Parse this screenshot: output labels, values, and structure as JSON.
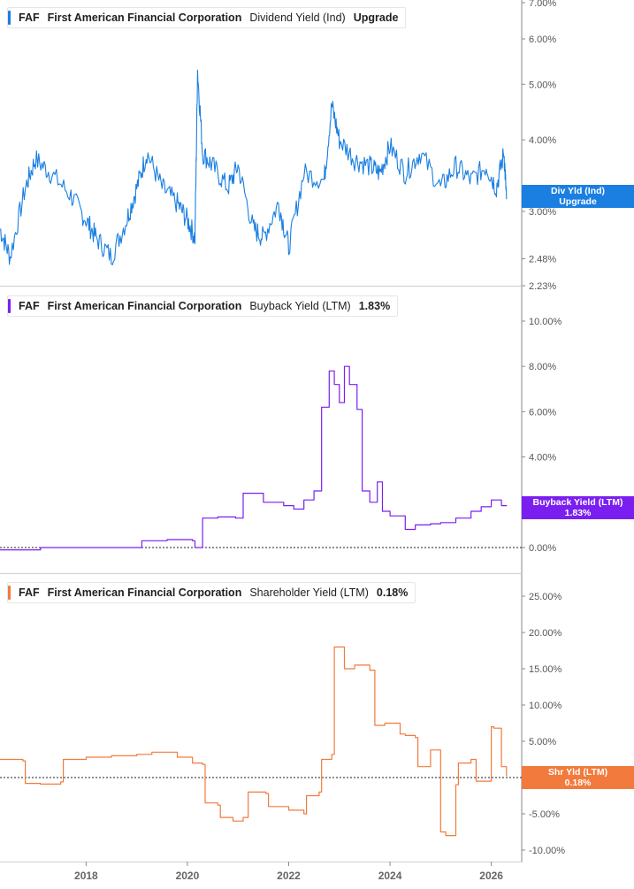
{
  "colors": {
    "panel1": "#1a7fe0",
    "panel2": "#7a1ff0",
    "panel3": "#f27a3c",
    "axis": "#8a8a8a",
    "grid_line": "#222222"
  },
  "x_axis": {
    "labels": [
      "2018",
      "2020",
      "2022",
      "2024",
      "2026"
    ],
    "range": [
      2016.3,
      2026.6
    ]
  },
  "panels": [
    {
      "legend": {
        "ticker": "FAF",
        "company": "First American Financial Corporation",
        "metric": "Dividend Yield (Ind)",
        "value": "Upgrade"
      },
      "tag": {
        "line1": "Div Yld (Ind)",
        "line2": "Upgrade"
      },
      "y_ticks": [
        "7.00%",
        "6.00%",
        "5.00%",
        "4.00%",
        "3.00%",
        "2.48%",
        "2.23%"
      ]
    },
    {
      "legend": {
        "ticker": "FAF",
        "company": "First American Financial Corporation",
        "metric": "Buyback Yield (LTM)",
        "value": "1.83%"
      },
      "tag": {
        "line1": "Buyback Yield (LTM)",
        "line2": "1.83%"
      },
      "y_ticks": [
        "10.00%",
        "8.00%",
        "6.00%",
        "4.00%",
        "0.00%"
      ]
    },
    {
      "legend": {
        "ticker": "FAF",
        "company": "First American Financial Corporation",
        "metric": "Shareholder Yield (LTM)",
        "value": "0.18%"
      },
      "tag": {
        "line1": "Shr Yld (LTM)",
        "line2": "0.18%"
      },
      "y_ticks": [
        "25.00%",
        "20.00%",
        "15.00%",
        "10.00%",
        "5.00%",
        "0.00%",
        "-5.00%",
        "-10.00%"
      ]
    }
  ],
  "chart_data": [
    {
      "type": "line",
      "title": "FAF First American Financial Corporation Dividend Yield (Ind)",
      "y_scale": "log",
      "ylim": [
        2.23,
        7.0
      ],
      "x": [
        2016.3,
        2016.5,
        2016.8,
        2017.0,
        2017.3,
        2017.7,
        2018.0,
        2018.2,
        2018.5,
        2018.8,
        2019.0,
        2019.2,
        2019.5,
        2019.8,
        2020.0,
        2020.15,
        2020.2,
        2020.3,
        2020.5,
        2020.8,
        2021.0,
        2021.3,
        2021.5,
        2021.8,
        2022.0,
        2022.3,
        2022.7,
        2022.85,
        2023.0,
        2023.3,
        2023.6,
        2023.8,
        2024.0,
        2024.3,
        2024.6,
        2025.0,
        2025.3,
        2025.6,
        2025.9,
        2026.1,
        2026.25,
        2026.3
      ],
      "series": [
        {
          "name": "Dividend Yield (Ind)",
          "values": [
            2.8,
            2.5,
            3.3,
            3.7,
            3.5,
            3.2,
            2.9,
            2.7,
            2.5,
            2.9,
            3.3,
            3.8,
            3.3,
            3.1,
            2.9,
            2.7,
            5.3,
            3.8,
            3.6,
            3.3,
            3.6,
            2.8,
            2.7,
            3.1,
            2.6,
            3.5,
            3.4,
            4.6,
            4.0,
            3.7,
            3.6,
            3.5,
            3.9,
            3.5,
            3.8,
            3.3,
            3.6,
            3.4,
            3.6,
            3.3,
            3.8,
            3.15
          ]
        }
      ]
    },
    {
      "type": "line",
      "title": "FAF First American Financial Corporation Buyback Yield (LTM)",
      "ylim": [
        0.0,
        10.0
      ],
      "x": [
        2016.3,
        2016.7,
        2017.1,
        2017.5,
        2018.0,
        2018.5,
        2019.0,
        2019.1,
        2019.6,
        2020.1,
        2020.15,
        2020.3,
        2020.6,
        2020.95,
        2021.1,
        2021.5,
        2021.9,
        2022.1,
        2022.3,
        2022.5,
        2022.65,
        2022.8,
        2022.9,
        2023.0,
        2023.1,
        2023.2,
        2023.35,
        2023.45,
        2023.6,
        2023.75,
        2023.85,
        2024.0,
        2024.3,
        2024.5,
        2024.8,
        2025.0,
        2025.3,
        2025.6,
        2025.8,
        2026.0,
        2026.2,
        2026.3
      ],
      "series": [
        {
          "name": "Buyback Yield (LTM)",
          "values": [
            -0.1,
            -0.1,
            0.0,
            0.0,
            0.0,
            0.0,
            0.0,
            0.3,
            0.35,
            0.3,
            0.0,
            1.3,
            1.35,
            1.3,
            2.4,
            2.0,
            1.85,
            1.7,
            2.1,
            2.5,
            6.2,
            7.8,
            7.2,
            6.4,
            8.0,
            7.2,
            6.1,
            2.5,
            2.0,
            2.9,
            1.6,
            1.4,
            0.8,
            1.0,
            1.05,
            1.1,
            1.3,
            1.6,
            1.8,
            2.1,
            1.85,
            1.83
          ]
        }
      ]
    },
    {
      "type": "line",
      "title": "FAF First American Financial Corporation Shareholder Yield (LTM)",
      "ylim": [
        -10.0,
        25.0
      ],
      "x": [
        2016.3,
        2016.75,
        2016.8,
        2017.1,
        2017.5,
        2017.55,
        2018.0,
        2018.5,
        2019.0,
        2019.3,
        2019.8,
        2020.1,
        2020.3,
        2020.35,
        2020.6,
        2020.65,
        2020.9,
        2021.1,
        2021.2,
        2021.55,
        2021.6,
        2022.0,
        2022.3,
        2022.35,
        2022.6,
        2022.65,
        2022.85,
        2022.9,
        2023.1,
        2023.3,
        2023.6,
        2023.7,
        2023.9,
        2024.2,
        2024.3,
        2024.5,
        2024.55,
        2024.8,
        2025.0,
        2025.1,
        2025.3,
        2025.35,
        2025.6,
        2025.7,
        2026.0,
        2026.05,
        2026.2,
        2026.3
      ],
      "series": [
        {
          "name": "Shareholder Yield (LTM)",
          "values": [
            2.5,
            2.3,
            -0.8,
            -0.9,
            -0.6,
            2.5,
            2.8,
            3.0,
            3.2,
            3.5,
            2.8,
            2.0,
            1.8,
            -3.5,
            -3.8,
            -5.5,
            -6.0,
            -5.5,
            -2.0,
            -2.2,
            -4.0,
            -4.5,
            -5.0,
            -2.5,
            -2.0,
            2.5,
            3.2,
            18.0,
            15.0,
            15.5,
            14.8,
            7.2,
            7.5,
            6.0,
            5.8,
            5.5,
            1.5,
            3.8,
            -7.5,
            -8.0,
            -1.0,
            2.0,
            2.5,
            -0.5,
            7.0,
            6.8,
            1.5,
            0.18
          ]
        }
      ]
    }
  ]
}
